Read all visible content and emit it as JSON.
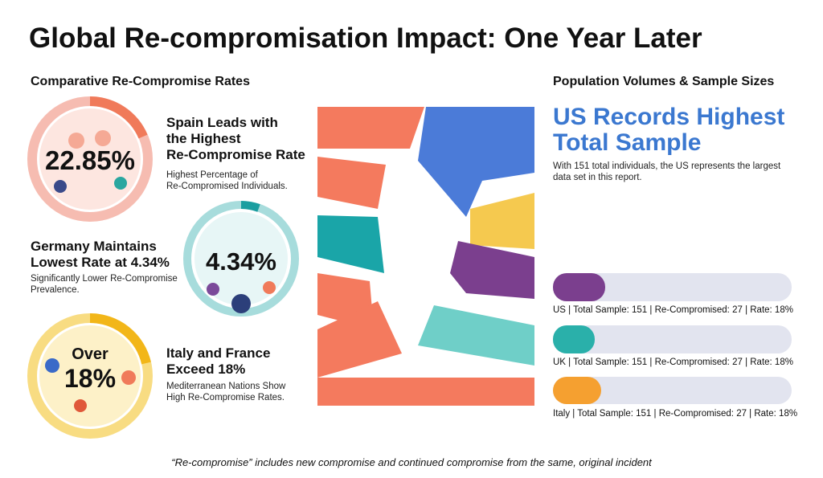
{
  "title": "Global Re-compromisation Impact: One Year Later",
  "left": {
    "heading": "Comparative Re-Compromise Rates",
    "items": [
      {
        "value": "22.85%",
        "headline": [
          "Spain Leads with",
          "the Highest",
          "Re-Compromise Rate"
        ],
        "subtext": [
          "Highest Percentage of",
          "Re-Compromised Individuals."
        ]
      },
      {
        "value": "4.34%",
        "headline": [
          "Germany Maintains",
          "Lowest Rate at 4.34%"
        ],
        "subtext": [
          "Significantly Lower Re-Compromise",
          "Prevalence."
        ]
      },
      {
        "prefix": "Over",
        "value": "18%",
        "headline": [
          "Italy and France",
          "Exceed 18%"
        ],
        "subtext": [
          "Mediterranean Nations Show",
          "High Re-Compromise Rates."
        ]
      }
    ]
  },
  "right": {
    "heading": "Population Volumes & Sample Sizes",
    "headline": [
      "US Records Highest",
      "Total Sample"
    ],
    "text": [
      "With 151 total individuals, the US represents the largest",
      "data set in this report."
    ],
    "bars": [
      "US | Total Sample: 151 | Re-Compromised: 27 | Rate: 18%",
      "UK | Total Sample: 151 | Re-Compromised: 27 | Rate: 18%",
      "Italy | Total Sample: 151 | Re-Compromised: 27 | Rate: 18%"
    ]
  },
  "footnote": "“Re-compromise” includes new compromise and continued compromise from the same, original incident"
}
